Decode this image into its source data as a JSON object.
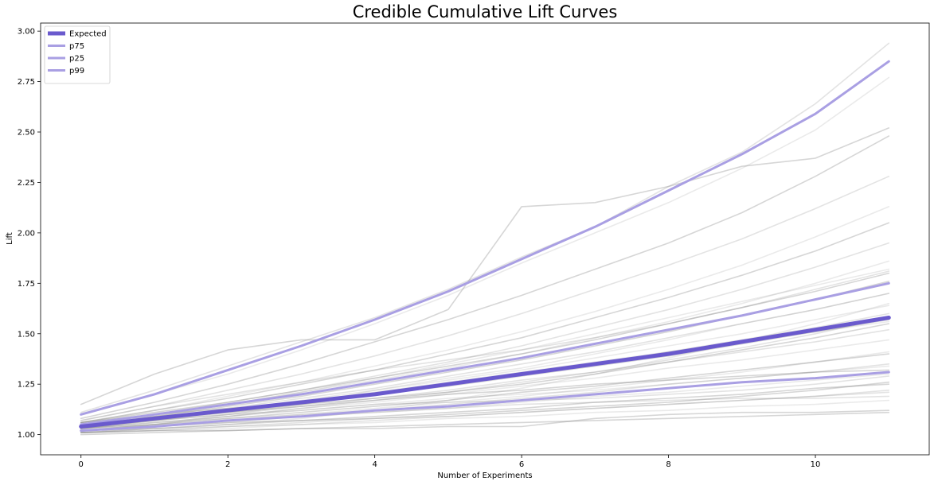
{
  "chart_data": {
    "type": "line",
    "title": "Credible Cumulative Lift Curves",
    "xlabel": "Number of Experiments",
    "ylabel": "Lift",
    "xlim": [
      -0.55,
      11.55
    ],
    "ylim": [
      0.9,
      3.04
    ],
    "x_ticks": [
      0,
      2,
      4,
      6,
      8,
      10
    ],
    "y_ticks": [
      1.0,
      1.25,
      1.5,
      1.75,
      2.0,
      2.25,
      2.5,
      2.75,
      3.0
    ],
    "y_tick_labels": [
      "1.00",
      "1.25",
      "1.50",
      "1.75",
      "2.00",
      "2.25",
      "2.50",
      "2.75",
      "3.00"
    ],
    "x": [
      0,
      1,
      2,
      3,
      4,
      5,
      6,
      7,
      8,
      9,
      10,
      11
    ],
    "grid": false,
    "legend_position": "top-left",
    "colors": {
      "expected": "#6a5acd",
      "quantile": "#a99fe3",
      "sample": "#7f7f7f"
    },
    "series": [
      {
        "name": "Expected",
        "role": "expected",
        "values": [
          1.04,
          1.08,
          1.12,
          1.16,
          1.2,
          1.25,
          1.3,
          1.35,
          1.4,
          1.46,
          1.52,
          1.58
        ]
      },
      {
        "name": "p75",
        "role": "quantile",
        "values": [
          1.05,
          1.1,
          1.15,
          1.2,
          1.26,
          1.32,
          1.38,
          1.45,
          1.52,
          1.59,
          1.67,
          1.75
        ]
      },
      {
        "name": "p25",
        "role": "quantile",
        "values": [
          1.02,
          1.04,
          1.07,
          1.09,
          1.12,
          1.14,
          1.17,
          1.2,
          1.23,
          1.26,
          1.28,
          1.31
        ]
      },
      {
        "name": "p99",
        "role": "quantile",
        "values": [
          1.1,
          1.2,
          1.32,
          1.44,
          1.57,
          1.71,
          1.87,
          2.03,
          2.21,
          2.39,
          2.59,
          2.85
        ]
      }
    ],
    "sample_curves": [
      [
        1.15,
        1.3,
        1.42,
        1.47,
        1.47,
        1.62,
        2.13,
        2.15,
        2.23,
        2.33,
        2.37,
        2.52
      ],
      [
        1.11,
        1.22,
        1.34,
        1.46,
        1.58,
        1.72,
        1.88,
        2.03,
        2.23,
        2.4,
        2.64,
        2.94
      ],
      [
        1.1,
        1.2,
        1.3,
        1.42,
        1.55,
        1.69,
        1.85,
        2.0,
        2.15,
        2.32,
        2.51,
        2.77
      ],
      [
        1.08,
        1.16,
        1.25,
        1.35,
        1.46,
        1.57,
        1.69,
        1.82,
        1.95,
        2.1,
        2.28,
        2.48
      ],
      [
        1.07,
        1.14,
        1.22,
        1.3,
        1.39,
        1.49,
        1.6,
        1.72,
        1.84,
        1.97,
        2.12,
        2.28
      ],
      [
        1.06,
        1.12,
        1.19,
        1.26,
        1.34,
        1.42,
        1.51,
        1.61,
        1.72,
        1.84,
        1.98,
        2.13
      ],
      [
        1.06,
        1.12,
        1.18,
        1.25,
        1.32,
        1.4,
        1.48,
        1.58,
        1.68,
        1.79,
        1.91,
        2.05
      ],
      [
        1.05,
        1.1,
        1.16,
        1.22,
        1.29,
        1.36,
        1.44,
        1.53,
        1.62,
        1.72,
        1.83,
        1.95
      ],
      [
        1.05,
        1.1,
        1.15,
        1.21,
        1.27,
        1.33,
        1.4,
        1.48,
        1.56,
        1.65,
        1.75,
        1.86
      ],
      [
        1.04,
        1.09,
        1.14,
        1.19,
        1.25,
        1.31,
        1.37,
        1.44,
        1.51,
        1.59,
        1.67,
        1.76
      ],
      [
        1.04,
        1.08,
        1.13,
        1.18,
        1.23,
        1.29,
        1.35,
        1.41,
        1.48,
        1.55,
        1.62,
        1.7
      ],
      [
        1.04,
        1.08,
        1.12,
        1.17,
        1.22,
        1.27,
        1.32,
        1.38,
        1.44,
        1.5,
        1.57,
        1.64
      ],
      [
        1.03,
        1.07,
        1.11,
        1.15,
        1.2,
        1.24,
        1.29,
        1.34,
        1.39,
        1.45,
        1.51,
        1.57
      ],
      [
        1.03,
        1.07,
        1.1,
        1.14,
        1.18,
        1.22,
        1.27,
        1.31,
        1.36,
        1.41,
        1.46,
        1.52
      ],
      [
        1.03,
        1.06,
        1.09,
        1.13,
        1.16,
        1.2,
        1.24,
        1.28,
        1.33,
        1.37,
        1.42,
        1.47
      ],
      [
        1.02,
        1.05,
        1.08,
        1.11,
        1.14,
        1.17,
        1.21,
        1.24,
        1.28,
        1.32,
        1.36,
        1.4
      ],
      [
        1.02,
        1.04,
        1.07,
        1.1,
        1.12,
        1.15,
        1.18,
        1.21,
        1.25,
        1.28,
        1.31,
        1.35
      ],
      [
        1.02,
        1.04,
        1.06,
        1.09,
        1.11,
        1.13,
        1.16,
        1.19,
        1.21,
        1.24,
        1.27,
        1.3
      ],
      [
        1.01,
        1.03,
        1.05,
        1.07,
        1.09,
        1.11,
        1.13,
        1.16,
        1.18,
        1.2,
        1.23,
        1.25
      ],
      [
        1.01,
        1.03,
        1.04,
        1.06,
        1.08,
        1.09,
        1.11,
        1.13,
        1.15,
        1.17,
        1.19,
        1.21
      ],
      [
        1.01,
        1.02,
        1.03,
        1.05,
        1.06,
        1.08,
        1.09,
        1.11,
        1.12,
        1.14,
        1.15,
        1.17
      ],
      [
        1.0,
        1.01,
        1.02,
        1.03,
        1.04,
        1.05,
        1.06,
        1.07,
        1.08,
        1.09,
        1.1,
        1.11
      ],
      [
        1.04,
        1.07,
        1.1,
        1.12,
        1.15,
        1.16,
        1.17,
        1.18,
        1.2,
        1.22,
        1.25,
        1.29
      ],
      [
        1.03,
        1.05,
        1.1,
        1.15,
        1.22,
        1.28,
        1.33,
        1.4,
        1.47,
        1.55,
        1.62,
        1.7
      ],
      [
        1.06,
        1.1,
        1.13,
        1.15,
        1.18,
        1.21,
        1.25,
        1.3,
        1.36,
        1.42,
        1.48,
        1.55
      ],
      [
        1.07,
        1.14,
        1.2,
        1.26,
        1.32,
        1.37,
        1.42,
        1.48,
        1.55,
        1.63,
        1.72,
        1.81
      ],
      [
        1.02,
        1.03,
        1.05,
        1.08,
        1.12,
        1.17,
        1.23,
        1.3,
        1.38,
        1.46,
        1.55,
        1.65
      ],
      [
        1.05,
        1.08,
        1.11,
        1.14,
        1.17,
        1.2,
        1.22,
        1.25,
        1.27,
        1.29,
        1.31,
        1.32
      ],
      [
        1.02,
        1.05,
        1.09,
        1.13,
        1.17,
        1.21,
        1.26,
        1.31,
        1.37,
        1.43,
        1.5,
        1.58
      ],
      [
        1.03,
        1.06,
        1.08,
        1.1,
        1.13,
        1.16,
        1.19,
        1.23,
        1.27,
        1.31,
        1.36,
        1.41
      ],
      [
        1.06,
        1.11,
        1.16,
        1.22,
        1.28,
        1.34,
        1.4,
        1.47,
        1.55,
        1.63,
        1.71,
        1.8
      ],
      [
        1.01,
        1.02,
        1.04,
        1.05,
        1.07,
        1.09,
        1.11,
        1.13,
        1.15,
        1.17,
        1.19,
        1.22
      ],
      [
        1.04,
        1.09,
        1.15,
        1.21,
        1.28,
        1.35,
        1.42,
        1.5,
        1.58,
        1.66,
        1.74,
        1.82
      ],
      [
        1.02,
        1.04,
        1.06,
        1.07,
        1.08,
        1.1,
        1.12,
        1.14,
        1.16,
        1.19,
        1.22,
        1.26
      ],
      [
        1.05,
        1.09,
        1.12,
        1.16,
        1.2,
        1.25,
        1.3,
        1.35,
        1.41,
        1.47,
        1.53,
        1.6
      ],
      [
        1.03,
        1.06,
        1.09,
        1.12,
        1.15,
        1.18,
        1.2,
        1.22,
        1.25,
        1.28,
        1.31,
        1.34
      ],
      [
        1.01,
        1.02,
        1.02,
        1.03,
        1.03,
        1.04,
        1.04,
        1.08,
        1.1,
        1.11,
        1.11,
        1.12
      ],
      [
        1.03,
        1.05,
        1.07,
        1.09,
        1.11,
        1.13,
        1.15,
        1.16,
        1.17,
        1.18,
        1.18,
        1.19
      ],
      [
        1.04,
        1.08,
        1.12,
        1.16,
        1.21,
        1.26,
        1.31,
        1.36,
        1.41,
        1.46,
        1.51,
        1.56
      ]
    ]
  }
}
